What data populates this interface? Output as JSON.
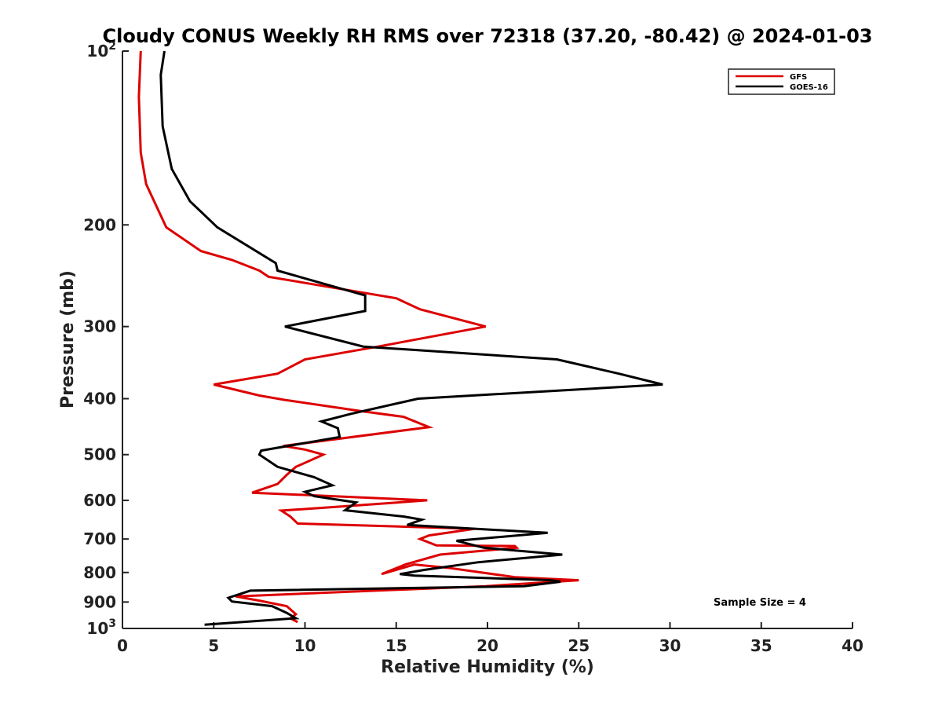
{
  "chart_data": {
    "type": "line",
    "title": "Cloudy CONUS Weekly RH RMS over 72318 (37.20, -80.42) @ 2024-01-03",
    "xlabel": "Relative Humidity (%)",
    "ylabel": "Pressure (mb)",
    "xlim": [
      0,
      40
    ],
    "ylim": [
      1000,
      100
    ],
    "yscale": "log",
    "y_reversed": true,
    "grid": false,
    "x_ticks": [
      0,
      5,
      10,
      15,
      20,
      25,
      30,
      35,
      40
    ],
    "x_tick_labels": [
      "0",
      "5",
      "10",
      "15",
      "20",
      "25",
      "30",
      "35",
      "40"
    ],
    "y_ticks": [
      {
        "value": 100,
        "base": "10",
        "exp": "2"
      },
      {
        "value": 200,
        "label": "200"
      },
      {
        "value": 300,
        "label": "300"
      },
      {
        "value": 400,
        "label": "400"
      },
      {
        "value": 500,
        "label": "500"
      },
      {
        "value": 600,
        "label": "600"
      },
      {
        "value": 700,
        "label": "700"
      },
      {
        "value": 800,
        "label": "800"
      },
      {
        "value": 900,
        "label": "900"
      },
      {
        "value": 1000,
        "base": "10",
        "exp": "3"
      }
    ],
    "legend": {
      "position": "top-right",
      "entries": [
        {
          "name": "GFS",
          "color": "#dd0000"
        },
        {
          "name": "GOES-16",
          "color": "#000000"
        }
      ]
    },
    "annotation": "Sample Size = 4",
    "series": [
      {
        "name": "GFS",
        "color": "#dd0000",
        "points": [
          [
            9.6,
            975
          ],
          [
            9.2,
            960
          ],
          [
            9.5,
            945
          ],
          [
            9.0,
            915
          ],
          [
            7.5,
            895
          ],
          [
            6.2,
            880
          ],
          [
            19.9,
            845
          ],
          [
            25.0,
            825
          ],
          [
            21.5,
            815
          ],
          [
            17.8,
            785
          ],
          [
            16.0,
            775
          ],
          [
            14.2,
            805
          ],
          [
            15.5,
            775
          ],
          [
            17.4,
            745
          ],
          [
            21.6,
            725
          ],
          [
            21.5,
            720
          ],
          [
            17.2,
            718
          ],
          [
            16.3,
            700
          ],
          [
            16.8,
            690
          ],
          [
            19.3,
            672
          ],
          [
            9.6,
            658
          ],
          [
            9.2,
            640
          ],
          [
            8.7,
            625
          ],
          [
            12.0,
            615
          ],
          [
            16.7,
            600
          ],
          [
            7.1,
            582
          ],
          [
            8.5,
            562
          ],
          [
            9.0,
            542
          ],
          [
            9.5,
            525
          ],
          [
            11.0,
            500
          ],
          [
            10.0,
            490
          ],
          [
            8.8,
            483
          ],
          [
            16.8,
            448
          ],
          [
            15.4,
            430
          ],
          [
            13.0,
            420
          ],
          [
            8.9,
            402
          ],
          [
            7.5,
            395
          ],
          [
            5.0,
            378
          ],
          [
            8.5,
            362
          ],
          [
            10.0,
            342
          ],
          [
            14.0,
            325
          ],
          [
            19.9,
            300
          ],
          [
            16.3,
            280
          ],
          [
            15.0,
            268
          ],
          [
            8.0,
            246
          ],
          [
            7.5,
            240
          ],
          [
            6.0,
            230
          ],
          [
            4.3,
            222
          ],
          [
            2.4,
            202
          ],
          [
            1.3,
            170
          ],
          [
            1.0,
            150
          ],
          [
            0.9,
            120
          ],
          [
            1.0,
            100
          ]
        ]
      },
      {
        "name": "GOES-16",
        "color": "#000000",
        "points": [
          [
            4.5,
            985
          ],
          [
            9.5,
            960
          ],
          [
            9.0,
            940
          ],
          [
            8.2,
            915
          ],
          [
            6.0,
            898
          ],
          [
            5.8,
            885
          ],
          [
            7.0,
            860
          ],
          [
            22.0,
            845
          ],
          [
            24.0,
            830
          ],
          [
            23.5,
            825
          ],
          [
            16.0,
            810
          ],
          [
            15.2,
            805
          ],
          [
            16.5,
            792
          ],
          [
            19.5,
            768
          ],
          [
            24.1,
            745
          ],
          [
            19.8,
            725
          ],
          [
            18.3,
            705
          ],
          [
            23.3,
            683
          ],
          [
            15.6,
            662
          ],
          [
            16.4,
            648
          ],
          [
            15.4,
            640
          ],
          [
            12.2,
            624
          ],
          [
            12.8,
            605
          ],
          [
            10.5,
            590
          ],
          [
            10.0,
            580
          ],
          [
            11.5,
            565
          ],
          [
            10.5,
            547
          ],
          [
            8.5,
            525
          ],
          [
            7.5,
            500
          ],
          [
            7.6,
            492
          ],
          [
            11.9,
            466
          ],
          [
            11.8,
            450
          ],
          [
            10.9,
            438
          ],
          [
            12.5,
            425
          ],
          [
            16.2,
            400
          ],
          [
            29.6,
            378
          ],
          [
            27.2,
            362
          ],
          [
            23.8,
            342
          ],
          [
            13.2,
            325
          ],
          [
            8.9,
            300
          ],
          [
            13.3,
            282
          ],
          [
            13.3,
            265
          ],
          [
            8.5,
            240
          ],
          [
            8.4,
            233
          ],
          [
            5.2,
            202
          ],
          [
            3.7,
            182
          ],
          [
            2.7,
            160
          ],
          [
            2.2,
            135
          ],
          [
            2.1,
            110
          ],
          [
            2.3,
            100
          ]
        ]
      }
    ]
  }
}
